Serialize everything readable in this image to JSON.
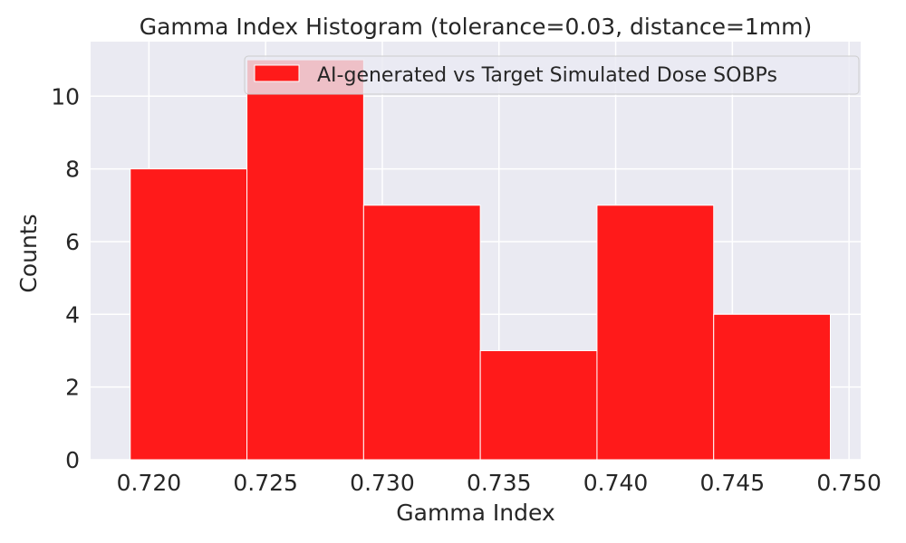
{
  "chart_data": {
    "type": "bar",
    "title": "Gamma Index Histogram (tolerance=0.03, distance=1mm)",
    "xlabel": "Gamma Index",
    "ylabel": "Counts",
    "xlim": [
      0.7175,
      0.7505
    ],
    "ylim": [
      0,
      11.5
    ],
    "grid": true,
    "legend_position": "top-right",
    "series": [
      {
        "name": "AI-generated vs Target Simulated Dose SOBPs",
        "color": "#ff1a1a",
        "bins": [
          {
            "x0": 0.7192,
            "x1": 0.7242,
            "count": 8
          },
          {
            "x0": 0.7242,
            "x1": 0.7292,
            "count": 11
          },
          {
            "x0": 0.7292,
            "x1": 0.7342,
            "count": 7
          },
          {
            "x0": 0.7342,
            "x1": 0.7392,
            "count": 3
          },
          {
            "x0": 0.7392,
            "x1": 0.7442,
            "count": 7
          },
          {
            "x0": 0.7442,
            "x1": 0.7492,
            "count": 4
          }
        ]
      }
    ],
    "x_ticks": [
      0.72,
      0.725,
      0.73,
      0.735,
      0.74,
      0.745,
      0.75
    ],
    "x_tick_labels": [
      "0.720",
      "0.725",
      "0.730",
      "0.735",
      "0.740",
      "0.745",
      "0.750"
    ],
    "y_ticks": [
      0,
      2,
      4,
      6,
      8,
      10
    ],
    "y_tick_labels": [
      "0",
      "2",
      "4",
      "6",
      "8",
      "10"
    ],
    "colors": {
      "plot_background": "#eaeaf2",
      "grid": "#ffffff",
      "bar": "#ff1a1a"
    }
  }
}
